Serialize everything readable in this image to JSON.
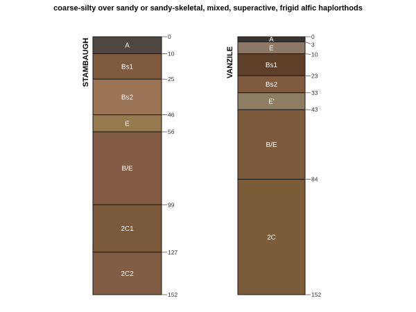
{
  "chart_data": {
    "type": "soil-profile",
    "title": "coarse-silty over sandy or sandy-skeletal, mixed, superactive, frigid alfic haplorthods",
    "depth_max": 152,
    "profiles": [
      {
        "name": "STAMBAUGH",
        "horizons": [
          {
            "name": "A",
            "top": 0,
            "bottom": 10,
            "color": "#4F4641"
          },
          {
            "name": "Bs1",
            "top": 10,
            "bottom": 25,
            "color": "#7F5A3E"
          },
          {
            "name": "Bs2",
            "top": 25,
            "bottom": 46,
            "color": "#9B7456"
          },
          {
            "name": "E",
            "top": 46,
            "bottom": 56,
            "color": "#957A50"
          },
          {
            "name": "B/E",
            "top": 56,
            "bottom": 99,
            "color": "#835B45"
          },
          {
            "name": "2C1",
            "top": 99,
            "bottom": 127,
            "color": "#7B5A3C"
          },
          {
            "name": "2C2",
            "top": 127,
            "bottom": 152,
            "color": "#825D46"
          }
        ],
        "depth_labels": [
          "0",
          "10",
          "25",
          "46",
          "56",
          "99",
          "127",
          "152"
        ]
      },
      {
        "name": "VANZILE",
        "horizons": [
          {
            "name": "A",
            "top": 0,
            "bottom": 3,
            "color": "#3A3531"
          },
          {
            "name": "E",
            "top": 3,
            "bottom": 10,
            "color": "#8D7866"
          },
          {
            "name": "Bs1",
            "top": 10,
            "bottom": 23,
            "color": "#5E3F28"
          },
          {
            "name": "Bs2",
            "top": 23,
            "bottom": 33,
            "color": "#815B40"
          },
          {
            "name": "E'",
            "top": 33,
            "bottom": 43,
            "color": "#8E7C63"
          },
          {
            "name": "B/E",
            "top": 43,
            "bottom": 84,
            "color": "#7E5A3D"
          },
          {
            "name": "2C",
            "top": 84,
            "bottom": 152,
            "color": "#7B5B38"
          }
        ],
        "depth_labels": [
          "0",
          "3",
          "10",
          "23",
          "33",
          "43",
          "84",
          "152"
        ]
      }
    ]
  }
}
